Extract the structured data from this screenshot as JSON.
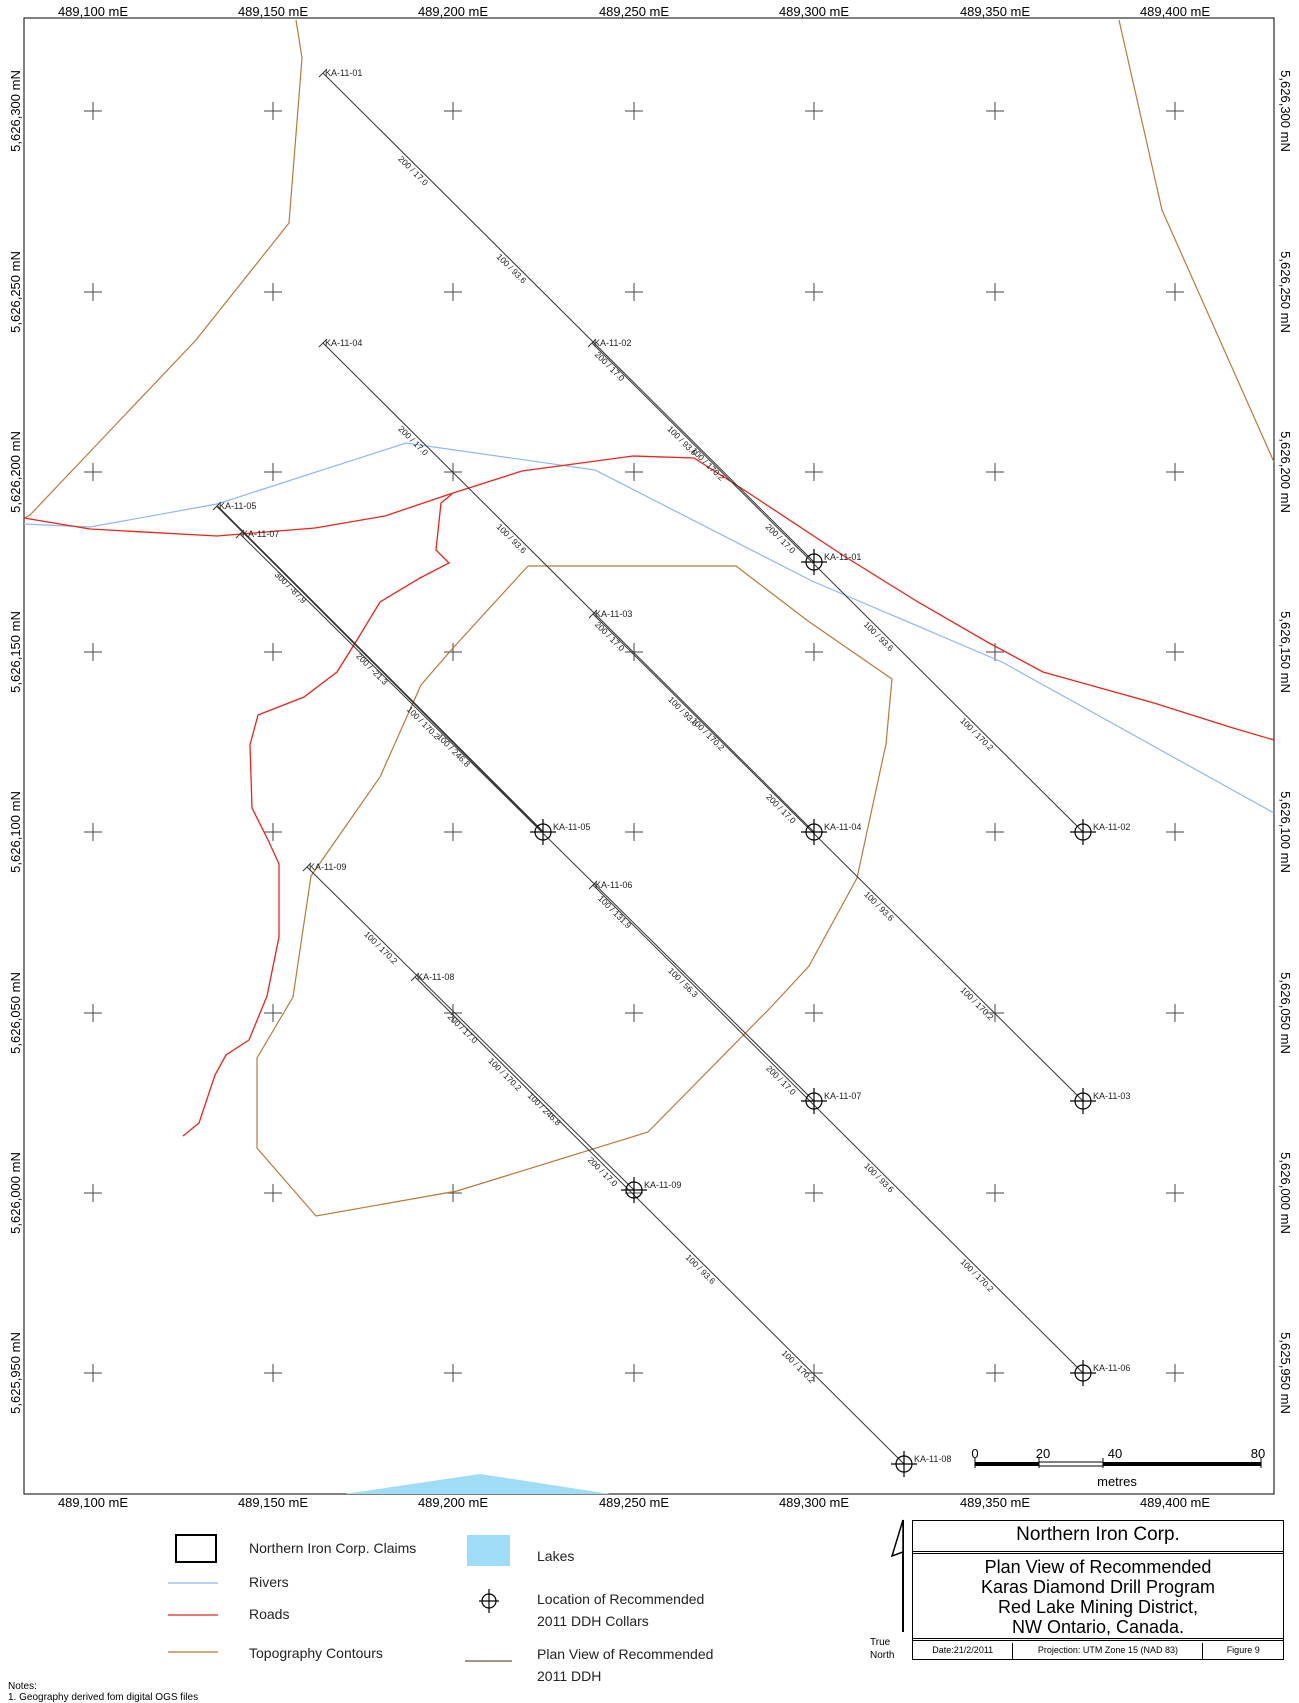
{
  "map": {
    "easting_labels": [
      "489,100 mE",
      "489,150 mE",
      "489,200 mE",
      "489,250 mE",
      "489,300 mE",
      "489,350 mE",
      "489,400 mE"
    ],
    "northing_labels": [
      "5,626,300 mN",
      "5,626,250 mN",
      "5,626,200 mN",
      "5,626,150 mN",
      "5,626,100 mN",
      "5,626,050 mN",
      "5,626,000 mN",
      "5,625,950 mN"
    ],
    "colors": {
      "rivers": "#8fb8ee",
      "roads": "#e8241c",
      "contours": "#b87a3a",
      "drill_holes": "#333333",
      "lakes": "#9fdcf5"
    },
    "drill_holes": [
      {
        "id": "KA-11-01",
        "collar_label": "KA-11-01",
        "segment_labels": [
          "200 / 17.0",
          "100 / 93.6",
          "200 / 17.0",
          "100 / 170.2"
        ]
      },
      {
        "id": "KA-11-02",
        "collar_label": "KA-11-02",
        "segment_labels": [
          "100 / 93.6",
          "200 / 17.0",
          "100 / 93.6",
          "100 / 170.2"
        ]
      },
      {
        "id": "KA-11-03",
        "collar_label": "KA-11-03",
        "segment_labels": [
          "100 / 93.6",
          "200 / 17.0",
          "100 / 93.6",
          "100 / 170.2"
        ]
      },
      {
        "id": "KA-11-04",
        "collar_label": "KA-11-04",
        "segment_labels": [
          "200 / 17.0",
          "100 / 93.6",
          "200 / 17.0",
          "100 / 170.2"
        ]
      },
      {
        "id": "KA-11-05",
        "collar_label": "KA-11-05",
        "segment_labels": [
          "300 / -87.9",
          "200 / -21.3",
          "100 / 246.8"
        ]
      },
      {
        "id": "KA-11-06",
        "collar_label": "KA-11-06",
        "segment_labels": [
          "100 / 56.3",
          "200 / 17.0",
          "100 / 93.6",
          "100 / 170.2"
        ]
      },
      {
        "id": "KA-11-07",
        "collar_label": "KA-11-07",
        "segment_labels": [
          "100 / 170.2",
          "100 / 131.9"
        ]
      },
      {
        "id": "KA-11-08",
        "collar_label": "KA-11-08",
        "segment_labels": [
          "100 / 170.2",
          "200 / 17.0",
          "100 / 93.6",
          "100 / 170.2"
        ]
      },
      {
        "id": "KA-11-09",
        "collar_label": "KA-11-09",
        "segment_labels": [
          "100 / 170.2",
          "200 / 17.0",
          "100 / 246.8"
        ]
      }
    ]
  },
  "scale_bar": {
    "ticks": [
      "0",
      "20",
      "40",
      "80"
    ],
    "unit": "metres"
  },
  "legend": {
    "claims": "Northern Iron Corp. Claims",
    "rivers": "Rivers",
    "roads": "Roads",
    "contours": "Topography Contours",
    "lakes": "Lakes",
    "collars_line1": "Location of Recommended",
    "collars_line2": "2011 DDH Collars",
    "plan_line1": "Plan View of Recommended",
    "plan_line2": "2011 DDH"
  },
  "north_arrow": {
    "line1": "True",
    "line2": "North"
  },
  "title_block": {
    "company": "Northern Iron Corp.",
    "title_lines": [
      "Plan View of Recommended",
      "Karas Diamond Drill Program",
      "Red Lake Mining District,",
      "NW Ontario, Canada."
    ],
    "date": "Date:21/2/2011",
    "projection": "Projection: UTM Zone 15 (NAD 83)",
    "figure": "Figure 9"
  },
  "notes": {
    "heading": "Notes:",
    "line1": "1. Geography derived fom digital OGS files"
  }
}
